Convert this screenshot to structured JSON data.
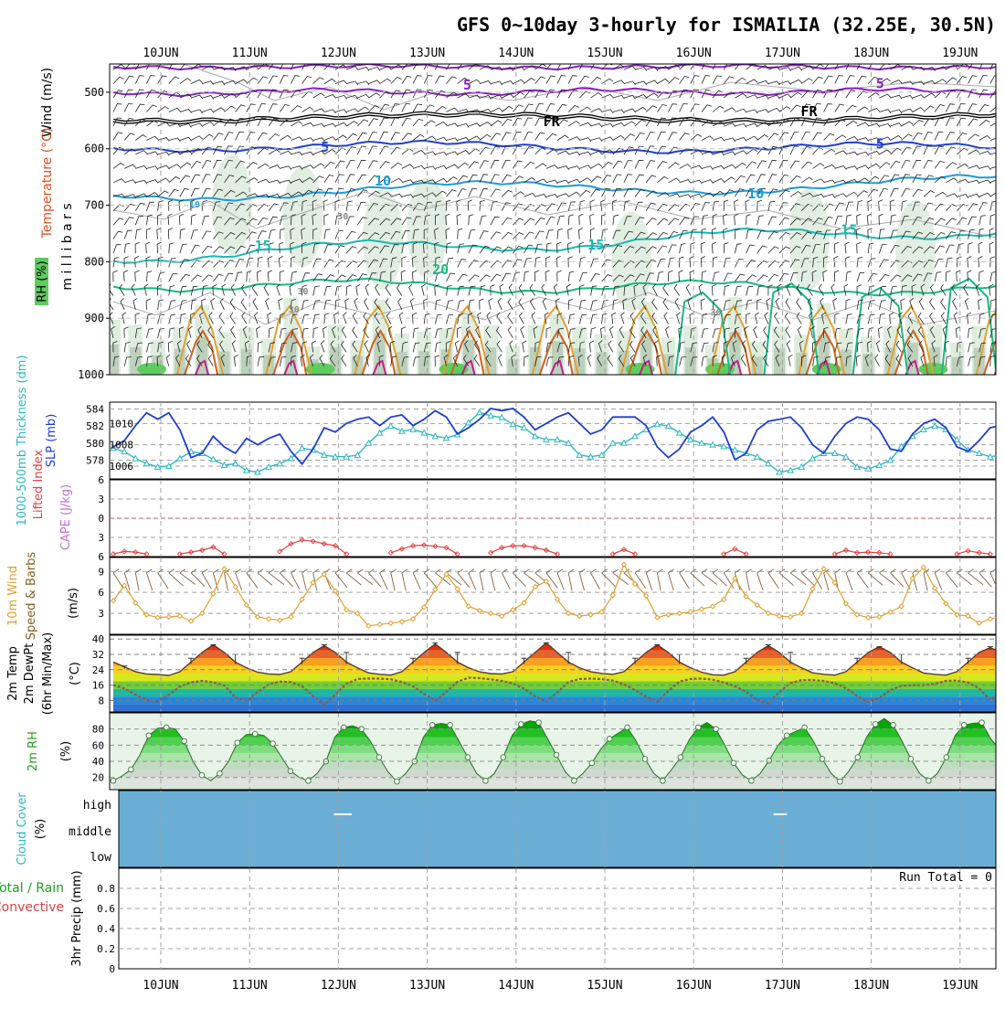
{
  "title": "GFS 0~10day 3-hourly for ISMAILIA (32.25E, 30.5N)",
  "dates": [
    "10JUN",
    "11JUN",
    "12JUN",
    "13JUN",
    "14JUN",
    "15JUN",
    "16JUN",
    "17JUN",
    "18JUN",
    "19JUN"
  ],
  "run_total": "Run Total = 0",
  "colors": {
    "slp": "#1f3fd0",
    "thickness": "#2fb8c0",
    "lifted": "#e04040",
    "wind10": "#e0a030",
    "barb": "#806040",
    "dewpt": "#8a5a4a",
    "rh": "#2fbf2f",
    "cloud": "#6aaed6",
    "grid": "#a0a0a0"
  },
  "chart_data": [
    {
      "id": "upper-air",
      "type": "contour",
      "ylabel": "m i l l i b a r s",
      "left_labels": {
        "wind": "Wind (m/s)",
        "temperature": "Temperature (°C)",
        "rh": "RH (%)"
      },
      "y_ticks": [
        500,
        600,
        700,
        800,
        900,
        1000
      ],
      "ylim": [
        450,
        1000
      ],
      "contour_labels": [
        {
          "text": "5",
          "day": 3.45,
          "p": 495
        },
        {
          "text": "5",
          "day": 8.1,
          "p": 493
        },
        {
          "text": "FR",
          "day": 4.4,
          "p": 560
        },
        {
          "text": "FR",
          "day": 7.3,
          "p": 542
        },
        {
          "text": "FR",
          "day": 9.9,
          "p": 550
        },
        {
          "text": "5",
          "day": 1.85,
          "p": 605
        },
        {
          "text": "5",
          "day": 8.1,
          "p": 600
        },
        {
          "text": "10",
          "day": 2.5,
          "p": 665
        },
        {
          "text": "10",
          "day": 6.7,
          "p": 688
        },
        {
          "text": "15",
          "day": 1.15,
          "p": 780
        },
        {
          "text": "15",
          "day": 4.9,
          "p": 778
        },
        {
          "text": "15",
          "day": 7.75,
          "p": 752
        },
        {
          "text": "20",
          "day": 3.15,
          "p": 822
        },
        {
          "text": "30",
          "day": 1.6,
          "p": 858
        },
        {
          "text": "30",
          "day": 1.5,
          "p": 890
        },
        {
          "text": "30",
          "day": 6.25,
          "p": 895
        },
        {
          "text": "10",
          "day": 0.38,
          "p": 704
        },
        {
          "text": "30",
          "day": 2.05,
          "p": 725
        }
      ]
    },
    {
      "id": "slp-thickness",
      "type": "line",
      "left_labels": {
        "thickness": "1000-500mb Thickness (dm)",
        "slp": "SLP (mb)"
      },
      "y_ticks_left": [
        578,
        580,
        582,
        584
      ],
      "y_ticks_right": [
        1006,
        1008,
        1010
      ],
      "series": [
        {
          "label": "SLP (mb)",
          "key": "slp",
          "values": [
            1007.8,
            1008.4,
            1009.8,
            1011.0,
            1010.4,
            1011.0,
            1009.4,
            1006.8,
            1007.2,
            1008.8,
            1007.8,
            1007.2,
            1008.6,
            1008.0,
            1008.6,
            1009.0,
            1007.4,
            1006.2,
            1007.6,
            1009.6,
            1009.2,
            1010.0,
            1010.4,
            1010.6,
            1009.8,
            1010.6,
            1010.8,
            1009.8,
            1010.4,
            1011.2,
            1010.6,
            1009.0,
            1009.6,
            1010.4,
            1011.4,
            1011.2,
            1011.4,
            1010.6,
            1009.4,
            1010.0,
            1010.6,
            1011.0,
            1010.0,
            1009.0,
            1009.4,
            1010.6,
            1010.6,
            1010.6,
            1009.8,
            1007.8,
            1006.8,
            1007.6,
            1009.2,
            1009.8,
            1010.6,
            1009.2,
            1006.6,
            1007.2,
            1009.4,
            1010.2,
            1010.4,
            1010.6,
            1009.6,
            1008.0,
            1007.2,
            1008.8,
            1010.0,
            1010.6,
            1010.4,
            1009.4,
            1007.6,
            1007.4,
            1009.0,
            1010.0,
            1010.4,
            1009.6,
            1007.8,
            1007.4,
            1008.4,
            1009.6,
            1009.8,
            1010.4
          ]
        },
        {
          "label": "1000-500mb Thickness (dm)",
          "key": "thk",
          "values": [
            579.4,
            579.0,
            578.2,
            577.6,
            577.2,
            577.3,
            578.2,
            579.0,
            578.8,
            578.1,
            577.4,
            577.6,
            576.8,
            576.6,
            577.2,
            577.6,
            578.2,
            579.4,
            579.2,
            578.6,
            578.4,
            578.4,
            578.6,
            580.0,
            581.2,
            582.0,
            581.4,
            581.6,
            581.2,
            580.8,
            580.6,
            581.0,
            582.4,
            583.6,
            583.2,
            583.0,
            582.2,
            581.8,
            580.8,
            580.4,
            580.4,
            580.0,
            578.6,
            578.4,
            578.6,
            580.0,
            580.0,
            580.8,
            581.6,
            582.2,
            582.0,
            581.2,
            580.4,
            580.0,
            579.8,
            579.6,
            579.2,
            578.8,
            578.4,
            577.6,
            576.6,
            576.8,
            577.2,
            578.2,
            578.8,
            578.8,
            578.4,
            577.2,
            577.0,
            577.4,
            578.0,
            579.6,
            580.8,
            581.6,
            582.0,
            581.6,
            580.4,
            579.2,
            578.8,
            578.4,
            578.6,
            578.8
          ]
        }
      ]
    },
    {
      "id": "stability",
      "type": "line",
      "left_labels": {
        "lifted": "Lifted Index",
        "cape": "CAPE (J/kg)"
      },
      "y_ticks": [
        -6,
        -3,
        0,
        3,
        6
      ],
      "ylim": [
        -6,
        6
      ],
      "zero_line": 0,
      "series": [
        {
          "label": "Lifted Index",
          "key": "li",
          "segments": [
            {
              "start": 0,
              "values": [
                5.6,
                5.2,
                5.3,
                5.6
              ]
            },
            {
              "start": 6,
              "values": [
                5.6,
                5.3,
                5.0,
                4.5,
                5.6
              ]
            },
            {
              "start": 15,
              "values": [
                5.2,
                4.0,
                3.4,
                3.6,
                4.0,
                4.3,
                5.6
              ]
            },
            {
              "start": 25,
              "values": [
                5.4,
                4.8,
                4.3,
                4.2,
                4.4,
                4.6,
                5.6
              ]
            },
            {
              "start": 34,
              "values": [
                5.4,
                4.6,
                4.3,
                4.3,
                4.6,
                5.0,
                5.6
              ]
            },
            {
              "start": 45,
              "values": [
                5.6,
                4.9,
                5.6
              ]
            },
            {
              "start": 55,
              "values": [
                5.6,
                4.8,
                5.6
              ]
            },
            {
              "start": 65,
              "values": [
                5.6,
                5.0,
                5.4,
                5.3,
                5.4,
                5.6
              ]
            },
            {
              "start": 76,
              "values": [
                5.6,
                5.1,
                5.4,
                5.6
              ]
            }
          ]
        }
      ]
    },
    {
      "id": "wind10m",
      "type": "line",
      "left_labels": {
        "title": "10m Wind",
        "sub": "Speed & Barbs",
        "unit": "(m/s)"
      },
      "y_ticks": [
        3,
        6,
        9
      ],
      "ylim": [
        0,
        11
      ],
      "series": [
        {
          "label": "10m Wind Speed (m/s)",
          "key": "ws",
          "values": [
            4.8,
            7.0,
            4.5,
            2.8,
            2.4,
            2.5,
            2.6,
            1.9,
            3.0,
            5.8,
            9.4,
            6.8,
            4.2,
            2.5,
            2.2,
            2.0,
            2.5,
            5.0,
            7.4,
            8.6,
            6.2,
            3.5,
            3.0,
            1.2,
            1.4,
            1.6,
            1.8,
            2.2,
            3.9,
            6.4,
            8.6,
            6.5,
            4.0,
            3.4,
            3.0,
            2.6,
            3.5,
            4.5,
            6.8,
            7.6,
            5.0,
            3.0,
            2.6,
            2.8,
            3.2,
            5.6,
            10.0,
            7.2,
            5.5,
            2.4,
            2.8,
            3.0,
            3.2,
            3.6,
            4.0,
            5.0,
            8.0,
            5.4,
            4.2,
            3.0,
            2.6,
            2.5,
            3.0,
            6.5,
            9.4,
            7.4,
            4.4,
            2.8,
            2.4,
            2.5,
            3.2,
            4.0,
            8.0,
            9.6,
            6.6,
            4.4,
            2.8,
            2.6,
            1.6,
            2.2,
            2.5,
            2.8
          ]
        }
      ]
    },
    {
      "id": "temp2m",
      "type": "area",
      "left_labels": {
        "temp": "2m Temp",
        "dewpt": "2m DewPt",
        "minmax": "(6hr Min/Max)",
        "unit": "(°C)"
      },
      "y_ticks": [
        8,
        16,
        24,
        32,
        40
      ],
      "ylim": [
        2,
        42
      ],
      "series": [
        {
          "label": "2m Temp (°C)",
          "key": "t",
          "values": [
            28,
            25.5,
            23,
            21.8,
            21.5,
            21,
            23,
            28,
            33,
            37,
            33,
            28,
            25,
            22.7,
            21.8,
            21.5,
            23,
            28,
            33,
            36.5,
            33,
            28,
            25,
            22.4,
            21.6,
            21.2,
            23,
            28,
            33,
            37.5,
            33,
            28,
            25,
            22.9,
            22,
            21.8,
            23,
            28,
            33,
            38,
            33,
            28,
            25,
            23,
            22.1,
            21.6,
            23,
            28,
            33,
            37,
            33,
            28,
            25,
            22.7,
            21.4,
            21.2,
            23,
            28,
            33,
            36.5,
            33,
            28,
            25,
            22.4,
            21.6,
            21.2,
            23,
            28,
            33,
            36,
            33,
            28,
            25,
            22.3,
            21.6,
            21.2,
            23,
            28,
            33,
            35.5,
            33,
            28
          ]
        },
        {
          "label": "2m DewPt (°C)",
          "key": "td",
          "values": [
            16,
            14.2,
            11,
            8.2,
            7.5,
            11,
            15.2,
            17.5,
            18.2,
            17.5,
            15.8,
            9.5,
            7.8,
            12.5,
            16.4,
            17.8,
            17.6,
            15.4,
            10.4,
            5.6,
            11,
            16.6,
            19.2,
            19.4,
            19.4,
            19,
            17.6,
            15.4,
            11.4,
            7.8,
            12.5,
            17.8,
            19.8,
            19.6,
            19,
            18.2,
            16.8,
            14.2,
            10.2,
            7.6,
            12.2,
            17.6,
            19.2,
            19.4,
            19.1,
            18.4,
            16.4,
            13.4,
            10,
            7.4,
            13,
            17.8,
            19.2,
            19.4,
            18.8,
            17.4,
            15.4,
            12.6,
            8.4,
            6.4,
            12.4,
            17,
            18.6,
            18.6,
            18.2,
            17,
            14.4,
            10.4,
            7.2,
            9.2,
            13.4,
            15.6,
            16,
            16,
            16.6,
            18.2,
            18.4,
            17.4,
            14.2,
            8.2,
            12.6,
            16.8
          ]
        },
        {
          "label": "6hr Max (°C)",
          "key": "tmax",
          "values": [
            null,
            26,
            null,
            null,
            null,
            null,
            null,
            30,
            null,
            37,
            null,
            32,
            null,
            null,
            null,
            null,
            null,
            30,
            null,
            37,
            null,
            33,
            null,
            null,
            null,
            null,
            null,
            30,
            null,
            38,
            null,
            33,
            null,
            null,
            null,
            null,
            null,
            30,
            null,
            38,
            null,
            33,
            null,
            null,
            null,
            null,
            null,
            30,
            null,
            37,
            null,
            32,
            null,
            null,
            null,
            null,
            null,
            30,
            null,
            37,
            null,
            33,
            null,
            null,
            null,
            null,
            null,
            30,
            null,
            36,
            null,
            32,
            null,
            null,
            null,
            null,
            null,
            30,
            null,
            36,
            null,
            30
          ]
        }
      ]
    },
    {
      "id": "rh2m",
      "type": "area",
      "left_labels": {
        "rh": "2m RH",
        "unit": "(%)"
      },
      "y_ticks": [
        20,
        40,
        60,
        80
      ],
      "ylim": [
        5,
        100
      ],
      "series": [
        {
          "label": "2m RH (%)",
          "key": "rh",
          "values": [
            16,
            22,
            30,
            48,
            72,
            81,
            82,
            80,
            65,
            40,
            23,
            16,
            25,
            40,
            63,
            73,
            74,
            72,
            62,
            45,
            28,
            20,
            16,
            25,
            40,
            70,
            82,
            84,
            80,
            65,
            45,
            27,
            15,
            25,
            40,
            70,
            85,
            87,
            85,
            65,
            45,
            25,
            16,
            25,
            45,
            72,
            86,
            90,
            88,
            68,
            48,
            27,
            16,
            25,
            38,
            55,
            68,
            75,
            82,
            65,
            43,
            25,
            16,
            30,
            45,
            67,
            82,
            88,
            80,
            60,
            38,
            23,
            16,
            25,
            41,
            60,
            72,
            77,
            82,
            65,
            43,
            25,
            15,
            28,
            45,
            70,
            86,
            93,
            85,
            65,
            43,
            25,
            16,
            25,
            45,
            72,
            85,
            87,
            88,
            68,
            55
          ]
        }
      ]
    },
    {
      "id": "cloud",
      "type": "heatmap",
      "left_labels": {
        "title": "Cloud Cover",
        "unit": "(%)"
      },
      "levels": [
        "high",
        "middle",
        "low"
      ],
      "streaks": [
        {
          "level": "high",
          "day_start": 1.95,
          "day_end": 2.15
        },
        {
          "level": "high",
          "day_start": 6.9,
          "day_end": 7.05
        }
      ]
    },
    {
      "id": "precip",
      "type": "bar",
      "left_labels": {
        "total": "Total / Rain",
        "convective": "Convective",
        "ylabel": "3hr Precip (mm)"
      },
      "y_ticks": [
        0,
        0.2,
        0.4,
        0.6,
        0.8
      ],
      "ylim": [
        0,
        1.0
      ],
      "values": []
    }
  ]
}
